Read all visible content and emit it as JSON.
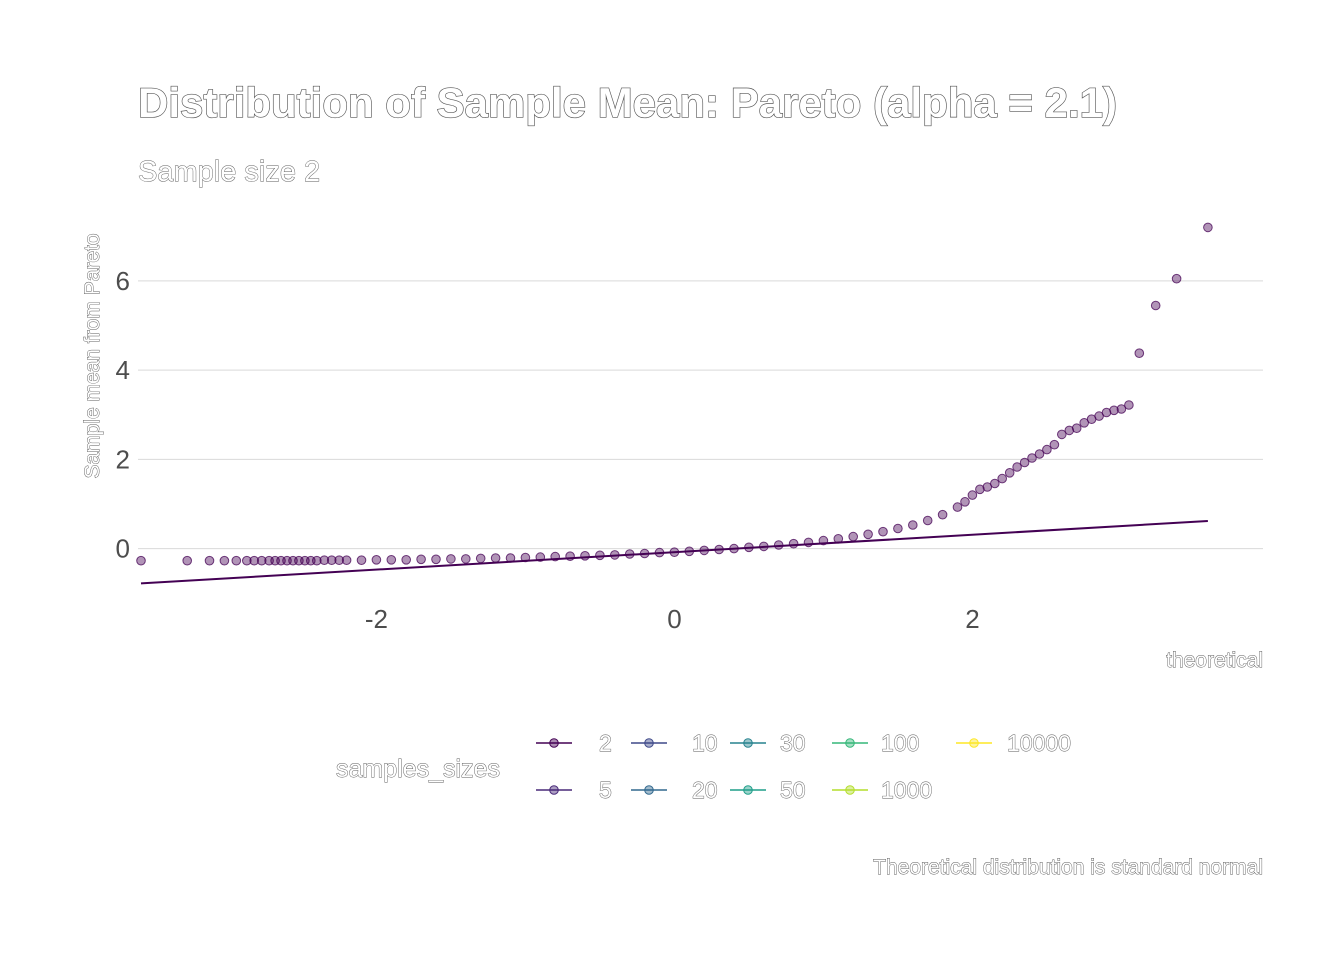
{
  "chart_data": {
    "type": "scatter",
    "title": "Distribution of Sample Mean: Pareto (alpha = 2.1)",
    "subtitle": "Sample size 2",
    "xlabel": "theoretical",
    "ylabel": "Sample mean from Pareto",
    "caption": "Theoretical distribution is standard normal",
    "xlim": [
      -3.6,
      3.95
    ],
    "ylim": [
      -0.95,
      7.5
    ],
    "x_ticks": [
      "-2",
      "0",
      "2"
    ],
    "x_tick_values": [
      -2,
      0,
      2
    ],
    "y_ticks": [
      "0",
      "2",
      "4",
      "6"
    ],
    "y_tick_values": [
      0,
      2,
      4,
      6
    ],
    "grid": "horizontal",
    "legend": {
      "title": "samples_sizes",
      "position": "bottom",
      "entries": [
        {
          "label": "2",
          "color": "#440154"
        },
        {
          "label": "5",
          "color": "#482878"
        },
        {
          "label": "10",
          "color": "#3e4989"
        },
        {
          "label": "20",
          "color": "#31688e"
        },
        {
          "label": "30",
          "color": "#26828e"
        },
        {
          "label": "50",
          "color": "#1f9e89"
        },
        {
          "label": "100",
          "color": "#35b779"
        },
        {
          "label": "1000",
          "color": "#b4de2c"
        },
        {
          "label": "10000",
          "color": "#fde725"
        }
      ]
    },
    "series": [
      {
        "name": "2",
        "color": "#440154",
        "points": [
          [
            -3.58,
            -0.27
          ],
          [
            -3.27,
            -0.27
          ],
          [
            -3.12,
            -0.27
          ],
          [
            -3.02,
            -0.27
          ],
          [
            -2.94,
            -0.27
          ],
          [
            -2.87,
            -0.27
          ],
          [
            -2.82,
            -0.27
          ],
          [
            -2.77,
            -0.27
          ],
          [
            -2.72,
            -0.27
          ],
          [
            -2.68,
            -0.27
          ],
          [
            -2.64,
            -0.27
          ],
          [
            -2.6,
            -0.27
          ],
          [
            -2.56,
            -0.27
          ],
          [
            -2.52,
            -0.27
          ],
          [
            -2.48,
            -0.27
          ],
          [
            -2.44,
            -0.27
          ],
          [
            -2.4,
            -0.27
          ],
          [
            -2.35,
            -0.26
          ],
          [
            -2.3,
            -0.26
          ],
          [
            -2.25,
            -0.26
          ],
          [
            -2.2,
            -0.26
          ],
          [
            -2.1,
            -0.26
          ],
          [
            -2.0,
            -0.25
          ],
          [
            -1.9,
            -0.25
          ],
          [
            -1.8,
            -0.25
          ],
          [
            -1.7,
            -0.24
          ],
          [
            -1.6,
            -0.24
          ],
          [
            -1.5,
            -0.23
          ],
          [
            -1.4,
            -0.23
          ],
          [
            -1.3,
            -0.22
          ],
          [
            -1.2,
            -0.21
          ],
          [
            -1.1,
            -0.21
          ],
          [
            -1.0,
            -0.2
          ],
          [
            -0.9,
            -0.19
          ],
          [
            -0.8,
            -0.18
          ],
          [
            -0.7,
            -0.17
          ],
          [
            -0.6,
            -0.16
          ],
          [
            -0.5,
            -0.15
          ],
          [
            -0.4,
            -0.14
          ],
          [
            -0.3,
            -0.12
          ],
          [
            -0.2,
            -0.11
          ],
          [
            -0.1,
            -0.09
          ],
          [
            0.0,
            -0.08
          ],
          [
            0.1,
            -0.06
          ],
          [
            0.2,
            -0.04
          ],
          [
            0.3,
            -0.02
          ],
          [
            0.4,
            0.0
          ],
          [
            0.5,
            0.03
          ],
          [
            0.6,
            0.05
          ],
          [
            0.7,
            0.08
          ],
          [
            0.8,
            0.11
          ],
          [
            0.9,
            0.14
          ],
          [
            1.0,
            0.18
          ],
          [
            1.1,
            0.22
          ],
          [
            1.2,
            0.27
          ],
          [
            1.3,
            0.32
          ],
          [
            1.4,
            0.38
          ],
          [
            1.5,
            0.45
          ],
          [
            1.6,
            0.53
          ],
          [
            1.7,
            0.63
          ],
          [
            1.8,
            0.76
          ],
          [
            1.9,
            0.93
          ],
          [
            1.95,
            1.05
          ],
          [
            2.0,
            1.2
          ],
          [
            2.05,
            1.33
          ],
          [
            2.1,
            1.38
          ],
          [
            2.15,
            1.46
          ],
          [
            2.2,
            1.57
          ],
          [
            2.25,
            1.7
          ],
          [
            2.3,
            1.83
          ],
          [
            2.35,
            1.93
          ],
          [
            2.4,
            2.03
          ],
          [
            2.45,
            2.12
          ],
          [
            2.5,
            2.22
          ],
          [
            2.55,
            2.33
          ],
          [
            2.6,
            2.56
          ],
          [
            2.65,
            2.65
          ],
          [
            2.7,
            2.7
          ],
          [
            2.75,
            2.82
          ],
          [
            2.8,
            2.9
          ],
          [
            2.85,
            2.97
          ],
          [
            2.9,
            3.05
          ],
          [
            2.95,
            3.1
          ],
          [
            3.0,
            3.13
          ],
          [
            3.05,
            3.22
          ],
          [
            3.12,
            4.38
          ],
          [
            3.23,
            5.45
          ],
          [
            3.37,
            6.05
          ],
          [
            3.58,
            7.2
          ]
        ]
      }
    ],
    "reference_line": {
      "from": [
        -3.58,
        -0.78
      ],
      "to": [
        3.58,
        0.62
      ],
      "color": "#440154"
    }
  }
}
